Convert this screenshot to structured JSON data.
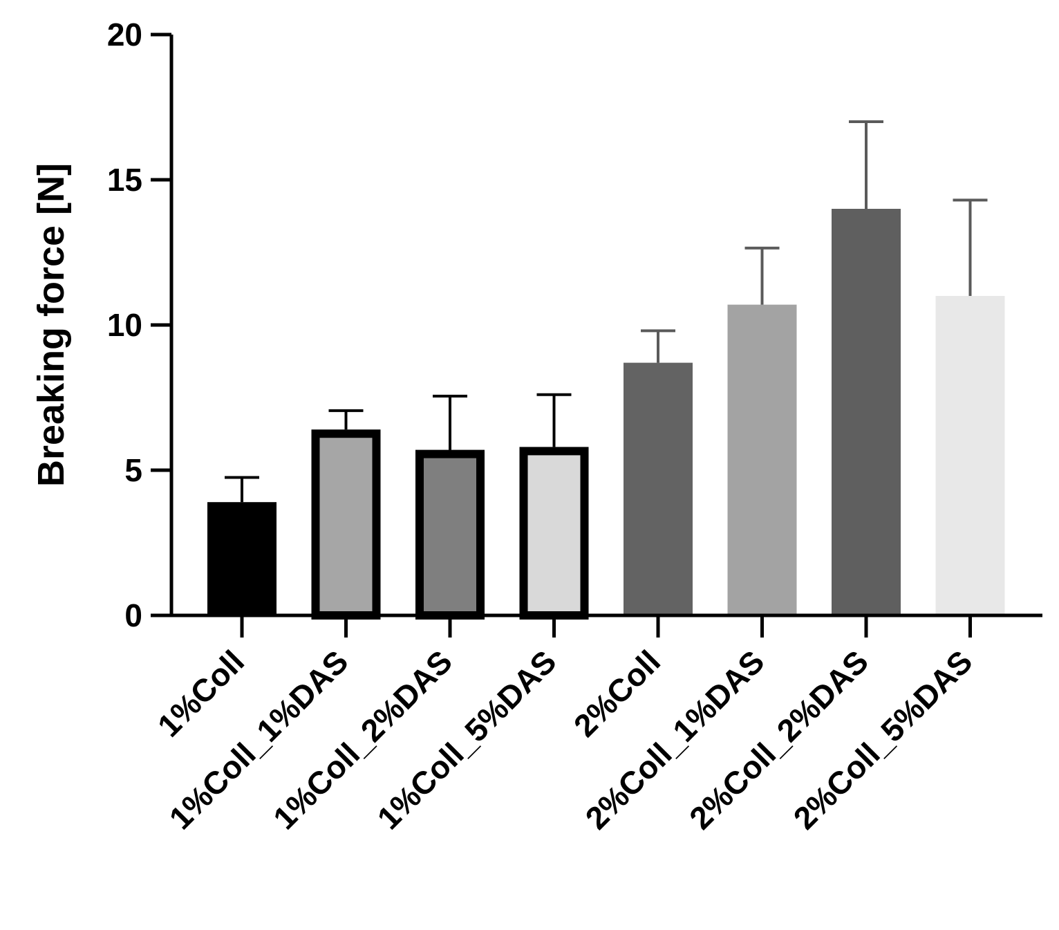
{
  "chart_data": {
    "type": "bar",
    "title": "",
    "xlabel": "",
    "ylabel": "Breaking force [N]",
    "ylim": [
      0,
      20
    ],
    "yticks": [
      0,
      5,
      10,
      15,
      20
    ],
    "grid": false,
    "categories": [
      "1%Coll",
      "1%Coll_1%DAS",
      "1%Coll_2%DAS",
      "1%Coll_5%DAS",
      "2%Coll",
      "2%Coll_1%DAS",
      "2%Coll_2%DAS",
      "2%Coll_5%DAS"
    ],
    "values": [
      3.9,
      6.4,
      5.7,
      5.8,
      8.7,
      10.7,
      14.0,
      11.0
    ],
    "error_upper": [
      0.85,
      0.65,
      1.85,
      1.8,
      1.1,
      1.95,
      3.0,
      3.3
    ],
    "bar_fills": [
      "#000000",
      "#a6a6a6",
      "#7f7f7f",
      "#d9d9d9",
      "#636363",
      "#a3a3a3",
      "#5f5f5f",
      "#e8e8e8"
    ],
    "bar_outlined": [
      false,
      true,
      true,
      true,
      false,
      false,
      false,
      false
    ],
    "colors": {
      "axis": "#000000",
      "outline": "#000000",
      "errorbar_outlined": "#000000",
      "errorbar_plain": "#5a5a5a"
    }
  }
}
